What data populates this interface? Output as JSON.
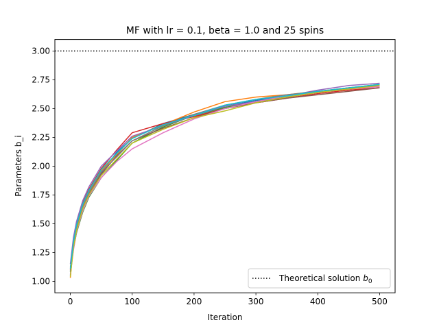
{
  "chart_data": {
    "type": "line",
    "title": "MF with lr = 0.1, beta = 1.0 and 25 spins",
    "xlabel": "Iteration",
    "ylabel": "Parameters b_i",
    "xlim": [
      -25,
      525
    ],
    "ylim": [
      0.9,
      3.1
    ],
    "x_ticks": [
      0,
      100,
      200,
      300,
      400,
      500
    ],
    "x_tick_labels": [
      "0",
      "100",
      "200",
      "300",
      "400",
      "500"
    ],
    "y_ticks": [
      1.0,
      1.25,
      1.5,
      1.75,
      2.0,
      2.25,
      2.5,
      2.75,
      3.0
    ],
    "y_tick_labels": [
      "1.00",
      "1.25",
      "1.50",
      "1.75",
      "2.00",
      "2.25",
      "2.50",
      "2.75",
      "3.00"
    ],
    "grid": false,
    "legend_position": "lower-right",
    "reference_line": {
      "value": 3.0,
      "style": "dotted",
      "color": "#000000",
      "label_text": "Theoretical solution ",
      "label_symbol": "b",
      "label_subscript": "0"
    },
    "x": [
      0,
      5,
      10,
      20,
      30,
      50,
      75,
      100,
      150,
      200,
      250,
      300,
      350,
      400,
      450,
      500
    ],
    "series": [
      {
        "color": "#1f77b4",
        "values": [
          1.05,
          1.3,
          1.45,
          1.62,
          1.75,
          1.94,
          2.12,
          2.24,
          2.37,
          2.45,
          2.52,
          2.57,
          2.61,
          2.64,
          2.67,
          2.7
        ]
      },
      {
        "color": "#ff7f0e",
        "values": [
          1.03,
          1.33,
          1.48,
          1.66,
          1.78,
          1.96,
          2.1,
          2.25,
          2.36,
          2.47,
          2.56,
          2.6,
          2.62,
          2.65,
          2.68,
          2.69
        ]
      },
      {
        "color": "#2ca02c",
        "values": [
          1.08,
          1.28,
          1.42,
          1.6,
          1.73,
          1.9,
          2.05,
          2.2,
          2.34,
          2.44,
          2.51,
          2.56,
          2.6,
          2.64,
          2.68,
          2.71
        ]
      },
      {
        "color": "#d62728",
        "values": [
          1.1,
          1.35,
          1.5,
          1.68,
          1.8,
          1.98,
          2.14,
          2.29,
          2.37,
          2.43,
          2.5,
          2.55,
          2.59,
          2.63,
          2.66,
          2.68
        ]
      },
      {
        "color": "#9467bd",
        "values": [
          1.15,
          1.38,
          1.52,
          1.7,
          1.82,
          2.0,
          2.13,
          2.26,
          2.35,
          2.44,
          2.52,
          2.56,
          2.61,
          2.66,
          2.7,
          2.72
        ]
      },
      {
        "color": "#8c564b",
        "values": [
          1.12,
          1.31,
          1.46,
          1.64,
          1.76,
          1.93,
          2.09,
          2.22,
          2.33,
          2.42,
          2.5,
          2.55,
          2.59,
          2.62,
          2.65,
          2.68
        ]
      },
      {
        "color": "#e377c2",
        "values": [
          1.06,
          1.27,
          1.43,
          1.61,
          1.74,
          1.9,
          2.04,
          2.15,
          2.29,
          2.41,
          2.5,
          2.56,
          2.61,
          2.64,
          2.67,
          2.69
        ]
      },
      {
        "color": "#7f7f7f",
        "values": [
          1.09,
          1.32,
          1.47,
          1.65,
          1.77,
          1.95,
          2.08,
          2.22,
          2.35,
          2.45,
          2.53,
          2.58,
          2.62,
          2.65,
          2.68,
          2.7
        ]
      },
      {
        "color": "#bcbd22",
        "values": [
          1.04,
          1.29,
          1.44,
          1.63,
          1.75,
          1.92,
          2.06,
          2.2,
          2.32,
          2.42,
          2.48,
          2.55,
          2.6,
          2.64,
          2.67,
          2.7
        ]
      },
      {
        "color": "#17becf",
        "values": [
          1.11,
          1.34,
          1.49,
          1.67,
          1.79,
          1.97,
          2.11,
          2.24,
          2.36,
          2.44,
          2.53,
          2.58,
          2.61,
          2.65,
          2.68,
          2.71
        ]
      }
    ]
  }
}
